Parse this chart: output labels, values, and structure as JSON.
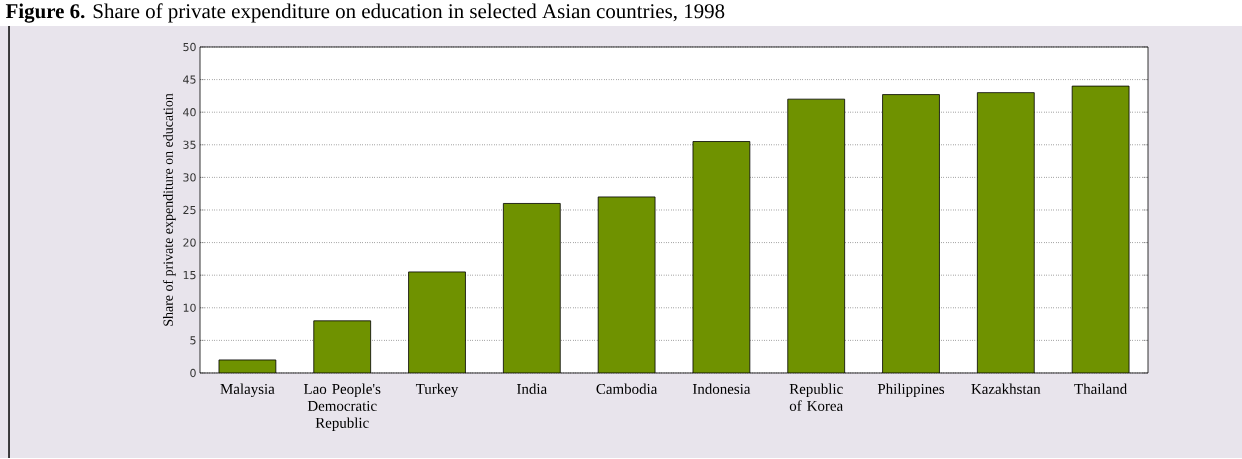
{
  "chart_data": {
    "type": "bar",
    "title": "**Figure 6.** Share of private expenditure on education in selected Asian countries, 1998",
    "ylabel": "Share of private expenditure on education",
    "categories": [
      "Malaysia",
      "Lao People's Democratic Republic",
      "Turkey",
      "India",
      "Cambodia",
      "Indonesia",
      "Republic of Korea",
      "Philippines",
      "Kazakhstan",
      "Thailand"
    ],
    "values": [
      2,
      8,
      15.5,
      26,
      27,
      35.5,
      42,
      42.7,
      43,
      44
    ],
    "color": "#6f9200",
    "ylim": [
      0,
      50
    ],
    "yticks": [
      0,
      5,
      10,
      15,
      20,
      25,
      30,
      35,
      40,
      45,
      50
    ],
    "grid": "y"
  }
}
